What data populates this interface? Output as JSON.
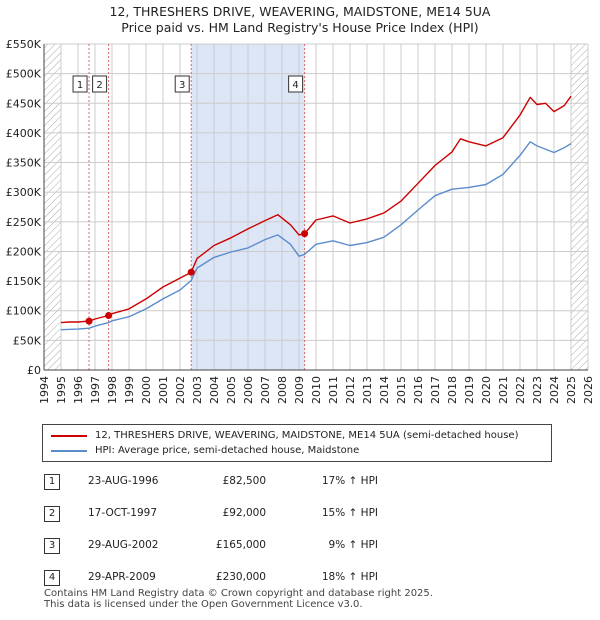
{
  "header": {
    "title_line1": "12, THRESHERS DRIVE, WEAVERING, MAIDSTONE, ME14 5UA",
    "title_line2": "Price paid vs. HM Land Registry's House Price Index (HPI)"
  },
  "colors": {
    "price_line": "#cc0000",
    "hpi_line": "#5b8ccc",
    "shade": "#dde6f6",
    "hatch": "#aaaaaa",
    "grid": "#cccccc",
    "marker_line": "#e06666"
  },
  "chart_data": {
    "type": "line",
    "title": "Price paid vs. HM Land Registry's House Price Index (HPI)",
    "x_range": [
      1994,
      2026
    ],
    "ylim": [
      0,
      550000
    ],
    "y_ticks": [
      {
        "value": 0,
        "label": "£0"
      },
      {
        "value": 50000,
        "label": "£50K"
      },
      {
        "value": 100000,
        "label": "£100K"
      },
      {
        "value": 150000,
        "label": "£150K"
      },
      {
        "value": 200000,
        "label": "£200K"
      },
      {
        "value": 250000,
        "label": "£250K"
      },
      {
        "value": 300000,
        "label": "£300K"
      },
      {
        "value": 350000,
        "label": "£350K"
      },
      {
        "value": 400000,
        "label": "£400K"
      },
      {
        "value": 450000,
        "label": "£450K"
      },
      {
        "value": 500000,
        "label": "£500K"
      },
      {
        "value": 550000,
        "label": "£550K"
      }
    ],
    "x_ticks": [
      "1994",
      "1995",
      "1996",
      "1997",
      "1998",
      "1999",
      "2000",
      "2001",
      "2002",
      "2003",
      "2004",
      "2005",
      "2006",
      "2007",
      "2008",
      "2009",
      "2010",
      "2011",
      "2012",
      "2013",
      "2014",
      "2015",
      "2016",
      "2017",
      "2018",
      "2019",
      "2020",
      "2021",
      "2022",
      "2023",
      "2024",
      "2025",
      "2026"
    ],
    "data_start": 1995,
    "hatch_from": 2025,
    "shaded_range": [
      2002.66,
      2009.33
    ],
    "series": [
      {
        "name": "12, THRESHERS DRIVE, WEAVERING, MAIDSTONE, ME14 5UA (semi-detached house)",
        "color": "#cc0000",
        "points": [
          [
            1995,
            80000
          ],
          [
            1995.5,
            81000
          ],
          [
            1996,
            81000
          ],
          [
            1996.65,
            82500
          ],
          [
            1997,
            86000
          ],
          [
            1997.8,
            92000
          ],
          [
            1998,
            95000
          ],
          [
            1999,
            103000
          ],
          [
            2000,
            120000
          ],
          [
            2001,
            140000
          ],
          [
            2002,
            155000
          ],
          [
            2002.66,
            165000
          ],
          [
            2003,
            188000
          ],
          [
            2004,
            210000
          ],
          [
            2005,
            223000
          ],
          [
            2006,
            238000
          ],
          [
            2007,
            252000
          ],
          [
            2007.75,
            262000
          ],
          [
            2008.5,
            245000
          ],
          [
            2009,
            228000
          ],
          [
            2009.33,
            230000
          ],
          [
            2010,
            253000
          ],
          [
            2011,
            260000
          ],
          [
            2012,
            248000
          ],
          [
            2013,
            255000
          ],
          [
            2014,
            265000
          ],
          [
            2015,
            285000
          ],
          [
            2016,
            315000
          ],
          [
            2017,
            345000
          ],
          [
            2018,
            368000
          ],
          [
            2018.5,
            390000
          ],
          [
            2019,
            385000
          ],
          [
            2020,
            378000
          ],
          [
            2021,
            392000
          ],
          [
            2022,
            430000
          ],
          [
            2022.6,
            460000
          ],
          [
            2023,
            448000
          ],
          [
            2023.5,
            450000
          ],
          [
            2024,
            436000
          ],
          [
            2024.6,
            446000
          ],
          [
            2025,
            462000
          ]
        ]
      },
      {
        "name": "HPI: Average price, semi-detached house, Maidstone",
        "color": "#5b8ccc",
        "points": [
          [
            1995,
            68000
          ],
          [
            1996,
            69000
          ],
          [
            1996.65,
            70500
          ],
          [
            1997,
            74000
          ],
          [
            1997.8,
            80000
          ],
          [
            1998,
            83000
          ],
          [
            1999,
            90000
          ],
          [
            2000,
            103000
          ],
          [
            2001,
            120000
          ],
          [
            2002,
            135000
          ],
          [
            2002.66,
            151000
          ],
          [
            2003,
            172000
          ],
          [
            2004,
            190000
          ],
          [
            2005,
            199000
          ],
          [
            2006,
            206000
          ],
          [
            2007,
            220000
          ],
          [
            2007.75,
            228000
          ],
          [
            2008.5,
            212000
          ],
          [
            2009,
            192000
          ],
          [
            2009.33,
            195000
          ],
          [
            2010,
            212000
          ],
          [
            2011,
            218000
          ],
          [
            2012,
            210000
          ],
          [
            2013,
            215000
          ],
          [
            2014,
            224000
          ],
          [
            2015,
            245000
          ],
          [
            2016,
            270000
          ],
          [
            2017,
            294000
          ],
          [
            2018,
            305000
          ],
          [
            2019,
            308000
          ],
          [
            2020,
            313000
          ],
          [
            2021,
            330000
          ],
          [
            2022,
            362000
          ],
          [
            2022.6,
            385000
          ],
          [
            2023,
            378000
          ],
          [
            2024,
            367000
          ],
          [
            2024.6,
            375000
          ],
          [
            2025,
            382000
          ]
        ]
      }
    ],
    "sales": [
      {
        "n": "1",
        "x": 1996.65,
        "price": 82500
      },
      {
        "n": "2",
        "x": 1997.8,
        "price": 92000
      },
      {
        "n": "3",
        "x": 2002.66,
        "price": 165000
      },
      {
        "n": "4",
        "x": 2009.33,
        "price": 230000
      }
    ]
  },
  "legend": {
    "price_label": "12, THRESHERS DRIVE, WEAVERING, MAIDSTONE, ME14 5UA (semi-detached house)",
    "hpi_label": "HPI: Average price, semi-detached house, Maidstone"
  },
  "transactions": [
    {
      "n": "1",
      "date": "23-AUG-1996",
      "price": "£82,500",
      "hpi": "17% ↑ HPI"
    },
    {
      "n": "2",
      "date": "17-OCT-1997",
      "price": "£92,000",
      "hpi": "15% ↑ HPI"
    },
    {
      "n": "3",
      "date": "29-AUG-2002",
      "price": "£165,000",
      "hpi": "9% ↑ HPI"
    },
    {
      "n": "4",
      "date": "29-APR-2009",
      "price": "£230,000",
      "hpi": "18% ↑ HPI"
    }
  ],
  "footer": {
    "line1": "Contains HM Land Registry data © Crown copyright and database right 2025.",
    "line2": "This data is licensed under the Open Government Licence v3.0."
  }
}
